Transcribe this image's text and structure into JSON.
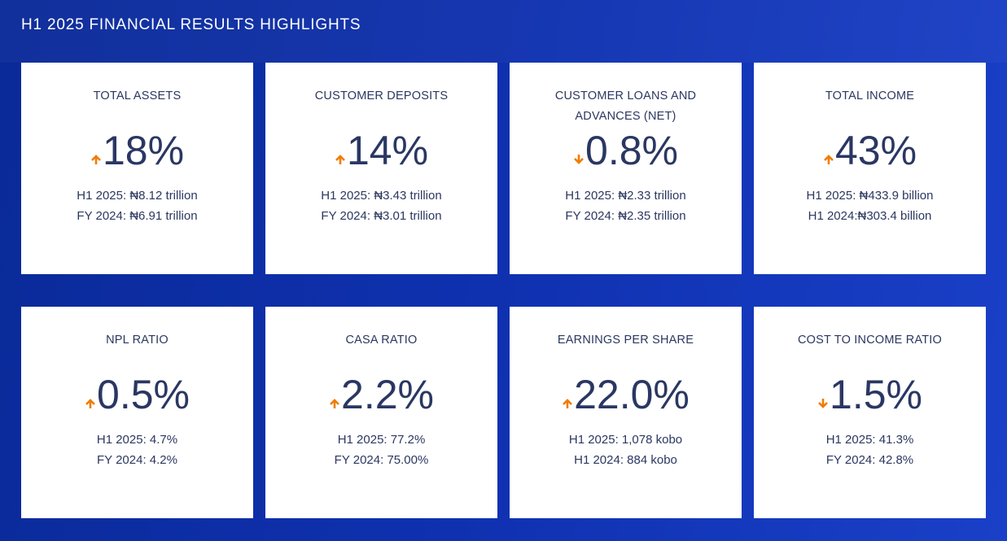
{
  "header": {
    "title": "H1 2025 FINANCIAL RESULTS HIGHLIGHTS"
  },
  "cards": [
    {
      "title": "TOTAL ASSETS",
      "value": "18%",
      "lines": [
        "H1 2025: ₦8.12 trillion",
        "FY 2024: ₦6.91 trillion"
      ]
    },
    {
      "title": "CUSTOMER DEPOSITS",
      "value": "14%",
      "lines": [
        "H1 2025: ₦3.43 trillion",
        "FY 2024: ₦3.01 trillion"
      ]
    },
    {
      "title": "CUSTOMER LOANS AND ADVANCES (NET)",
      "value": "0.8%",
      "lines": [
        "H1 2025: ₦2.33 trillion",
        "FY 2024: ₦2.35 trillion"
      ]
    },
    {
      "title": "TOTAL INCOME",
      "value": "43%",
      "lines": [
        "H1 2025: ₦433.9 billion",
        "H1 2024:₦303.4 billion"
      ]
    },
    {
      "title": "NPL RATIO",
      "value": "0.5%",
      "lines": [
        "H1 2025: 4.7%",
        "FY 2024: 4.2%"
      ]
    },
    {
      "title": "CASA RATIO",
      "value": "2.2%",
      "lines": [
        "H1 2025: 77.2%",
        "FY 2024: 75.00%"
      ]
    },
    {
      "title": "EARNINGS PER SHARE",
      "value": "22.0%",
      "lines": [
        "H1 2025: 1,078 kobo",
        "H1 2024: 884 kobo"
      ]
    },
    {
      "title": "COST TO INCOME RATIO",
      "value": "1.5%",
      "lines": [
        "H1 2025: 41.3%",
        "FY 2024: 42.8%"
      ]
    }
  ]
}
